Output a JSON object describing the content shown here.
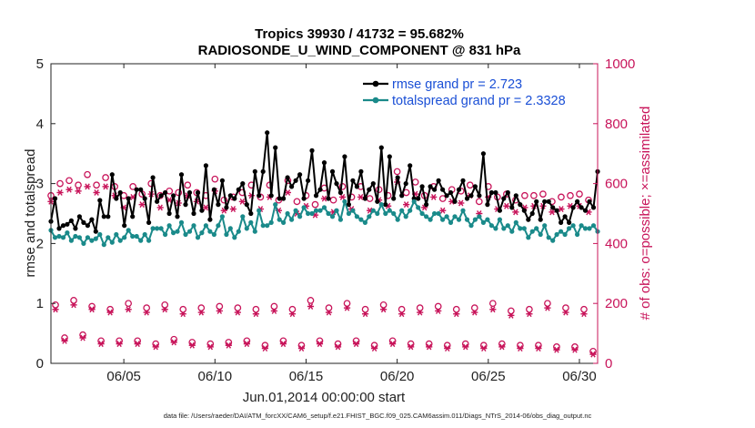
{
  "chart_data": {
    "type": "line",
    "title": "Tropics 39930 / 41732 = 95.682%",
    "subtitle": "RADIOSONDE_U_WIND_COMPONENT @ 831 hPa",
    "xlabel": "Jun.01,2014 00:00:00 start",
    "ylabel": "rmse and totalspread",
    "y2label": "# of obs: o=possible; ×=assimilated",
    "footnote": "data file: /Users/raeder/DAI/ATM_forcXX/CAM6_setup/f.e21.FHIST_BGC.f09_025.CAM6assim.011/Diags_NTrS_2014-06/obs_diag_output.nc",
    "xlim": [
      1,
      31
    ],
    "ylim": [
      0,
      5
    ],
    "y2lim": [
      0,
      1000
    ],
    "xticks": [
      5,
      10,
      15,
      20,
      25,
      30
    ],
    "xtick_labels": [
      "06/05",
      "06/10",
      "06/15",
      "06/20",
      "06/25",
      "06/30"
    ],
    "yticks": [
      "0",
      "1",
      "2",
      "3",
      "4",
      "5"
    ],
    "y2ticks": [
      "0",
      "200",
      "400",
      "600",
      "800",
      "1000"
    ],
    "legend_position": "top-right",
    "series": [
      {
        "name": "rmse grand pr = 2.723",
        "color": "#000000",
        "axis": "left",
        "values": [
          2.37,
          2.75,
          2.25,
          2.3,
          2.32,
          2.38,
          2.25,
          2.45,
          2.35,
          2.3,
          2.4,
          2.2,
          2.72,
          2.45,
          2.45,
          3.15,
          2.75,
          2.85,
          2.3,
          2.75,
          2.45,
          2.9,
          2.9,
          2.75,
          2.35,
          3.1,
          2.7,
          2.8,
          2.85,
          2.5,
          2.8,
          2.45,
          3.15,
          2.65,
          2.85,
          2.5,
          2.85,
          2.55,
          3.3,
          2.4,
          2.9,
          2.65,
          3.05,
          2.6,
          2.8,
          2.75,
          2.9,
          3.0,
          2.65,
          2.5,
          3.2,
          2.8,
          3.2,
          3.85,
          2.8,
          3.6,
          2.75,
          2.75,
          3.1,
          2.95,
          3.05,
          3.15,
          2.75,
          3.05,
          3.55,
          2.8,
          2.9,
          3.35,
          2.75,
          3.2,
          3.0,
          2.85,
          3.45,
          2.65,
          3.05,
          2.95,
          3.2,
          2.75,
          2.9,
          3.0,
          2.7,
          3.6,
          2.65,
          3.45,
          2.75,
          3.1,
          2.8,
          3.0,
          3.3,
          2.75,
          2.75,
          2.95,
          2.65,
          2.95,
          2.9,
          3.05,
          2.9,
          2.8,
          2.85,
          2.7,
          2.9,
          3.05,
          2.75,
          2.8,
          2.95,
          2.8,
          3.5,
          2.65,
          2.85,
          2.85,
          2.55,
          2.75,
          2.85,
          2.6,
          2.8,
          2.65,
          2.55,
          2.4,
          2.5,
          2.7,
          2.4,
          2.7,
          2.7,
          2.6,
          2.55,
          2.35,
          2.45,
          2.35,
          2.6,
          2.7,
          2.6,
          2.55,
          2.7,
          2.6,
          3.2
        ]
      },
      {
        "name": "totalspread grand pr = 2.3328",
        "color": "#1a8a8a",
        "axis": "left",
        "values": [
          2.22,
          2.1,
          2.12,
          2.1,
          2.18,
          2.05,
          2.12,
          2.1,
          2.0,
          2.1,
          2.05,
          2.08,
          2.15,
          1.98,
          2.1,
          2.02,
          2.15,
          2.05,
          2.1,
          2.22,
          2.12,
          2.12,
          2.05,
          2.15,
          2.05,
          2.25,
          2.25,
          2.25,
          2.15,
          2.3,
          2.18,
          2.2,
          2.35,
          2.15,
          2.2,
          2.3,
          2.1,
          2.18,
          2.3,
          2.2,
          2.15,
          2.3,
          2.45,
          2.15,
          2.25,
          2.1,
          2.2,
          2.45,
          2.25,
          2.35,
          2.2,
          2.55,
          2.3,
          2.3,
          2.35,
          2.65,
          2.4,
          2.35,
          2.5,
          2.4,
          2.55,
          2.45,
          2.6,
          2.5,
          2.5,
          2.55,
          2.55,
          2.6,
          2.5,
          2.45,
          2.55,
          2.4,
          2.7,
          2.5,
          2.55,
          2.45,
          2.4,
          2.35,
          2.45,
          2.55,
          2.5,
          2.65,
          2.5,
          2.55,
          2.5,
          2.4,
          2.55,
          2.45,
          2.55,
          2.7,
          2.6,
          2.5,
          2.45,
          2.4,
          2.5,
          2.5,
          2.4,
          2.45,
          2.35,
          2.45,
          2.4,
          2.55,
          2.4,
          2.3,
          2.4,
          2.45,
          2.35,
          2.4,
          2.3,
          2.25,
          2.4,
          2.25,
          2.3,
          2.2,
          2.35,
          2.25,
          2.25,
          2.1,
          2.2,
          2.25,
          2.15,
          2.3,
          2.1,
          2.05,
          2.15,
          2.2,
          2.15,
          2.25,
          2.3,
          2.15,
          2.3,
          2.25,
          2.25,
          2.3,
          2.2
        ]
      }
    ],
    "obs_possible": {
      "marker": "o",
      "color": "#c8145a",
      "axis": "right",
      "x": [
        1.25,
        1.75,
        2.25,
        2.75,
        3.25,
        3.75,
        4.25,
        4.75,
        5.25,
        5.75,
        6.25,
        6.75,
        7.25,
        7.75,
        8.25,
        8.75,
        9.25,
        9.75,
        10.25,
        10.75,
        11.25,
        11.75,
        12.25,
        12.75,
        13.25,
        13.75,
        14.25,
        14.75,
        15.25,
        15.75,
        16.25,
        16.75,
        17.25,
        17.75,
        18.25,
        18.75,
        19.25,
        19.75,
        20.25,
        20.75,
        21.25,
        21.75,
        22.25,
        22.75,
        23.25,
        23.75,
        24.25,
        24.75,
        25.25,
        25.75,
        26.25,
        26.75,
        27.25,
        27.75,
        28.25,
        28.75,
        29.25,
        29.75,
        30.25,
        30.75
      ],
      "values": [
        195,
        85,
        210,
        95,
        190,
        75,
        180,
        75,
        200,
        75,
        185,
        65,
        195,
        80,
        180,
        70,
        185,
        65,
        190,
        70,
        185,
        75,
        180,
        60,
        190,
        75,
        180,
        60,
        210,
        75,
        185,
        65,
        200,
        75,
        180,
        60,
        195,
        75,
        180,
        65,
        185,
        65,
        190,
        60,
        180,
        65,
        185,
        60,
        200,
        65,
        175,
        60,
        180,
        60,
        200,
        55,
        185,
        55,
        180,
        40
      ]
    },
    "obs_assimilated": {
      "marker": "x",
      "color": "#c8145a",
      "axis": "right",
      "x": [
        1.25,
        1.75,
        2.25,
        2.75,
        3.25,
        3.75,
        4.25,
        4.75,
        5.25,
        5.75,
        6.25,
        6.75,
        7.25,
        7.75,
        8.25,
        8.75,
        9.25,
        9.75,
        10.25,
        10.75,
        11.25,
        11.75,
        12.25,
        12.75,
        13.25,
        13.75,
        14.25,
        14.75,
        15.25,
        15.75,
        16.25,
        16.75,
        17.25,
        17.75,
        18.25,
        18.75,
        19.25,
        19.75,
        20.25,
        20.75,
        21.25,
        21.75,
        22.25,
        22.75,
        23.25,
        23.75,
        24.25,
        24.75,
        25.25,
        25.75,
        26.25,
        26.75,
        27.25,
        27.75,
        28.25,
        28.75,
        29.25,
        29.75,
        30.25,
        30.75
      ],
      "values": [
        180,
        75,
        195,
        85,
        180,
        65,
        170,
        65,
        180,
        65,
        170,
        55,
        180,
        70,
        165,
        60,
        170,
        55,
        175,
        60,
        170,
        65,
        165,
        50,
        175,
        65,
        165,
        50,
        190,
        65,
        170,
        55,
        185,
        65,
        165,
        50,
        180,
        65,
        165,
        55,
        170,
        55,
        175,
        50,
        165,
        55,
        170,
        50,
        180,
        55,
        160,
        50,
        165,
        50,
        185,
        45,
        170,
        45,
        165,
        30
      ]
    },
    "obs_possible_high": {
      "marker": "o",
      "color": "#c8145a",
      "axis": "right",
      "x": [
        1.0,
        1.5,
        2.0,
        2.5,
        3.0,
        3.5,
        4.0,
        4.5,
        5.0,
        5.5,
        6.0,
        6.5,
        7.0,
        7.5,
        8.0,
        8.5,
        9.0,
        9.5,
        10.0,
        10.5,
        11.0,
        11.5,
        12.0,
        12.5,
        13.0,
        13.5,
        14.0,
        14.5,
        15.0,
        15.5,
        16.0,
        16.5,
        17.0,
        17.5,
        18.0,
        18.5,
        19.0,
        19.5,
        20.0,
        20.5,
        21.0,
        21.5,
        22.0,
        22.5,
        23.0,
        23.5,
        24.0,
        24.5,
        25.0,
        25.5,
        26.0,
        26.5,
        27.0,
        27.5,
        28.0,
        28.5,
        29.0,
        29.5,
        30.0,
        30.5
      ],
      "values": [
        560,
        600,
        610,
        595,
        630,
        595,
        620,
        590,
        560,
        590,
        565,
        600,
        560,
        575,
        570,
        595,
        570,
        560,
        615,
        545,
        555,
        570,
        595,
        555,
        595,
        545,
        610,
        540,
        560,
        530,
        585,
        545,
        590,
        555,
        590,
        550,
        580,
        560,
        640,
        570,
        605,
        560,
        590,
        550,
        580,
        575,
        595,
        540,
        590,
        555,
        565,
        545,
        560,
        560,
        565,
        540,
        555,
        560,
        565,
        545
      ]
    },
    "obs_assimilated_high": {
      "marker": "x",
      "color": "#c8145a",
      "axis": "right",
      "x": [
        1.0,
        1.5,
        2.0,
        2.5,
        3.0,
        3.5,
        4.0,
        4.5,
        5.0,
        5.5,
        6.0,
        6.5,
        7.0,
        7.5,
        8.0,
        8.5,
        9.0,
        9.5,
        10.0,
        10.5,
        11.0,
        11.5,
        12.0,
        12.5,
        13.0,
        13.5,
        14.0,
        14.5,
        15.0,
        15.5,
        16.0,
        16.5,
        17.0,
        17.5,
        18.0,
        18.5,
        19.0,
        19.5,
        20.0,
        20.5,
        21.0,
        21.5,
        22.0,
        22.5,
        23.0,
        23.5,
        24.0,
        24.5,
        25.0,
        25.5,
        26.0,
        26.5,
        27.0,
        27.5,
        28.0,
        28.5,
        29.0,
        29.5,
        30.0,
        30.5
      ],
      "values": [
        540,
        570,
        580,
        575,
        590,
        570,
        590,
        560,
        520,
        555,
        530,
        565,
        520,
        545,
        535,
        560,
        540,
        520,
        575,
        510,
        515,
        540,
        560,
        515,
        555,
        510,
        570,
        500,
        525,
        495,
        550,
        505,
        555,
        515,
        555,
        510,
        545,
        525,
        605,
        530,
        565,
        520,
        555,
        510,
        540,
        535,
        560,
        500,
        555,
        515,
        525,
        505,
        520,
        525,
        525,
        505,
        515,
        525,
        525,
        505
      ]
    }
  }
}
